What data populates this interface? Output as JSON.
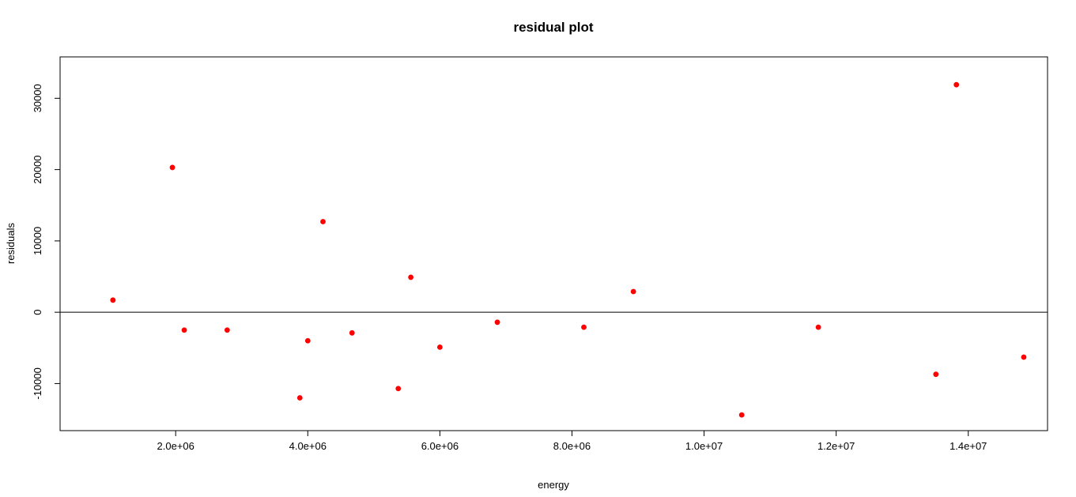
{
  "chart_data": {
    "type": "scatter",
    "title": "residual plot",
    "xlabel": "energy",
    "ylabel": "residuals",
    "xlim": [
      250000,
      15200000
    ],
    "ylim": [
      -16600,
      35800
    ],
    "x_ticks": [
      {
        "value": 2000000,
        "label": "2.0e+06"
      },
      {
        "value": 4000000,
        "label": "4.0e+06"
      },
      {
        "value": 6000000,
        "label": "6.0e+06"
      },
      {
        "value": 8000000,
        "label": "8.0e+06"
      },
      {
        "value": 10000000,
        "label": "1.0e+07"
      },
      {
        "value": 12000000,
        "label": "1.2e+07"
      },
      {
        "value": 14000000,
        "label": "1.4e+07"
      }
    ],
    "y_ticks": [
      {
        "value": -10000,
        "label": "-10000"
      },
      {
        "value": 0,
        "label": "0"
      },
      {
        "value": 10000,
        "label": "10000"
      },
      {
        "value": 20000,
        "label": "20000"
      },
      {
        "value": 30000,
        "label": "30000"
      }
    ],
    "reference_line": {
      "y": 0,
      "color": "#000000"
    },
    "point_color": "#ff0000",
    "grid": false,
    "legend": "none",
    "points": [
      {
        "x": 1050000,
        "y": 1700
      },
      {
        "x": 1950000,
        "y": 20300
      },
      {
        "x": 2130000,
        "y": -2500
      },
      {
        "x": 2780000,
        "y": -2500
      },
      {
        "x": 3880000,
        "y": -12000
      },
      {
        "x": 4000000,
        "y": -4000
      },
      {
        "x": 4230000,
        "y": 12700
      },
      {
        "x": 4670000,
        "y": -2900
      },
      {
        "x": 5370000,
        "y": -10700
      },
      {
        "x": 5560000,
        "y": 4900
      },
      {
        "x": 6000000,
        "y": -4900
      },
      {
        "x": 6870000,
        "y": -1400
      },
      {
        "x": 8180000,
        "y": -2100
      },
      {
        "x": 8930000,
        "y": 2900
      },
      {
        "x": 10570000,
        "y": -14400
      },
      {
        "x": 11730000,
        "y": -2100
      },
      {
        "x": 13510000,
        "y": -8700
      },
      {
        "x": 13820000,
        "y": 31900
      },
      {
        "x": 14840000,
        "y": -6300
      }
    ]
  }
}
